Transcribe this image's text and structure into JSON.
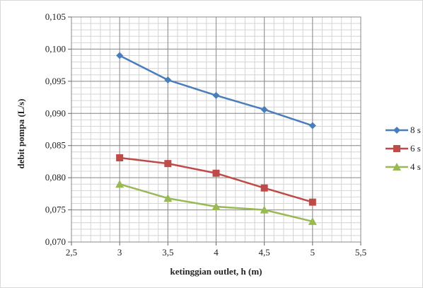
{
  "chart_data": {
    "type": "line",
    "title": "",
    "xlabel": "ketinggian outlet, h (m)",
    "ylabel": "debit pompa (L/s)",
    "xlim": [
      2.5,
      5.5
    ],
    "ylim": [
      0.07,
      0.105
    ],
    "x_ticks": [
      "2,5",
      "3",
      "3,5",
      "4",
      "4,5",
      "5",
      "5,5"
    ],
    "y_ticks": [
      "0,070",
      "0,075",
      "0,080",
      "0,085",
      "0,090",
      "0,095",
      "0,100",
      "0,105"
    ],
    "grid": true,
    "legend_position": "right",
    "x": [
      3,
      3.5,
      4,
      4.5,
      5
    ],
    "series": [
      {
        "name": "8 s",
        "color": "#4a7ebb",
        "marker": "diamond",
        "values": [
          0.099,
          0.0952,
          0.0928,
          0.0906,
          0.0881
        ]
      },
      {
        "name": "6 s",
        "color": "#be4b48",
        "marker": "square",
        "values": [
          0.0831,
          0.0822,
          0.0807,
          0.0784,
          0.0762
        ]
      },
      {
        "name": "4 s",
        "color": "#98b954",
        "marker": "triangle",
        "values": [
          0.079,
          0.0768,
          0.0755,
          0.075,
          0.0732
        ]
      }
    ]
  }
}
